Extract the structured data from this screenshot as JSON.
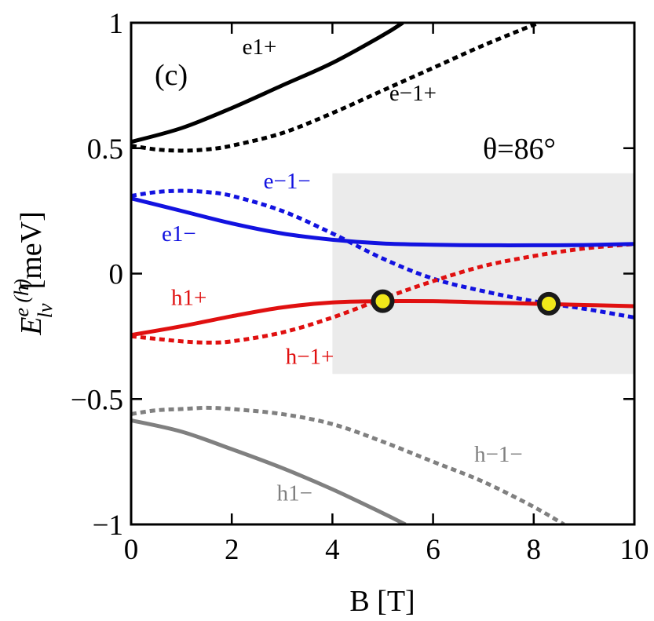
{
  "chart_data": {
    "type": "line",
    "panel_label": "(c)",
    "annotation": "θ=86°",
    "xlabel": "B [T]",
    "ylabel": {
      "base": "E",
      "sup": "e (h)",
      "sub": "lν",
      "unit": "[meV]"
    },
    "xlim": [
      0,
      10
    ],
    "ylim": [
      -1,
      1
    ],
    "x_ticks": [
      {
        "value": 0,
        "label": "0"
      },
      {
        "value": 2,
        "label": "2"
      },
      {
        "value": 4,
        "label": "4"
      },
      {
        "value": 6,
        "label": "6"
      },
      {
        "value": 8,
        "label": "8"
      },
      {
        "value": 10,
        "label": "10"
      }
    ],
    "y_ticks": [
      {
        "value": 1,
        "label": "1"
      },
      {
        "value": 0.5,
        "label": "0.5"
      },
      {
        "value": 0,
        "label": "0"
      },
      {
        "value": -0.5,
        "label": "−0.5"
      },
      {
        "value": -1,
        "label": "−1"
      }
    ],
    "shaded_region": {
      "x": [
        4,
        10
      ],
      "y": [
        -0.4,
        0.4
      ],
      "color": "#ebebeb"
    },
    "markers": [
      {
        "x": 5.0,
        "y": -0.11,
        "fill": "#f0e81a",
        "edge": "#1a1a1a"
      },
      {
        "x": 8.3,
        "y": -0.12,
        "fill": "#f0e81a",
        "edge": "#1a1a1a"
      }
    ],
    "series": [
      {
        "name": "e1+",
        "color": "#000000",
        "dashed": false,
        "x": [
          0,
          1,
          2,
          3,
          4,
          5,
          5.4
        ],
        "y": [
          0.525,
          0.58,
          0.66,
          0.75,
          0.84,
          0.95,
          1.0
        ],
        "label": {
          "text": "e1+",
          "x": 2.55,
          "y": 0.875
        }
      },
      {
        "name": "e−1+",
        "color": "#000000",
        "dashed": true,
        "x": [
          0,
          0.5,
          1,
          1.5,
          2,
          3,
          4,
          5,
          6,
          7,
          8.1
        ],
        "y": [
          0.51,
          0.495,
          0.49,
          0.495,
          0.51,
          0.56,
          0.64,
          0.73,
          0.82,
          0.91,
          1.0
        ],
        "label": {
          "text": "e−1+",
          "x": 5.6,
          "y": 0.69
        }
      },
      {
        "name": "e1−",
        "color": "#1212e0",
        "dashed": false,
        "x": [
          0,
          1,
          2,
          3,
          4,
          5,
          6,
          7,
          8,
          9,
          10
        ],
        "y": [
          0.3,
          0.25,
          0.2,
          0.16,
          0.135,
          0.12,
          0.115,
          0.113,
          0.113,
          0.114,
          0.118
        ],
        "label": {
          "text": "e1−",
          "x": 0.95,
          "y": 0.13
        }
      },
      {
        "name": "e−1−",
        "color": "#1212e0",
        "dashed": true,
        "x": [
          0,
          0.5,
          1,
          1.5,
          2,
          3,
          4,
          5,
          6,
          7,
          8,
          9,
          10
        ],
        "y": [
          0.31,
          0.325,
          0.33,
          0.325,
          0.31,
          0.25,
          0.16,
          0.06,
          -0.02,
          -0.07,
          -0.11,
          -0.14,
          -0.175
        ],
        "label": {
          "text": "e−1−",
          "x": 3.1,
          "y": 0.34
        }
      },
      {
        "name": "h1+",
        "color": "#e01010",
        "dashed": false,
        "x": [
          0,
          1,
          2,
          3,
          4,
          5,
          6,
          7,
          8,
          9,
          10
        ],
        "y": [
          -0.245,
          -0.21,
          -0.17,
          -0.135,
          -0.115,
          -0.11,
          -0.11,
          -0.115,
          -0.12,
          -0.125,
          -0.13
        ],
        "label": {
          "text": "h1+",
          "x": 1.15,
          "y": -0.125
        }
      },
      {
        "name": "h−1+",
        "color": "#e01010",
        "dashed": true,
        "x": [
          0,
          0.5,
          1,
          1.5,
          2,
          3,
          4,
          5,
          6,
          7,
          8,
          9,
          10
        ],
        "y": [
          -0.25,
          -0.26,
          -0.27,
          -0.275,
          -0.27,
          -0.235,
          -0.175,
          -0.1,
          -0.03,
          0.03,
          0.07,
          0.1,
          0.118
        ],
        "label": {
          "text": "h−1+",
          "x": 3.55,
          "y": -0.36
        }
      },
      {
        "name": "h1−",
        "color": "#808080",
        "dashed": false,
        "x": [
          0,
          1,
          2,
          3,
          4,
          5,
          5.45
        ],
        "y": [
          -0.585,
          -0.63,
          -0.7,
          -0.775,
          -0.86,
          -0.955,
          -1.0
        ],
        "label": {
          "text": "h1−",
          "x": 3.25,
          "y": -0.905
        }
      },
      {
        "name": "h−1−",
        "color": "#808080",
        "dashed": true,
        "x": [
          0,
          0.5,
          1,
          1.5,
          2,
          3,
          4,
          5,
          6,
          7,
          8,
          8.6
        ],
        "y": [
          -0.56,
          -0.545,
          -0.54,
          -0.535,
          -0.54,
          -0.56,
          -0.6,
          -0.67,
          -0.75,
          -0.83,
          -0.93,
          -1.0
        ],
        "label": {
          "text": "h−1−",
          "x": 7.3,
          "y": -0.75
        }
      }
    ]
  }
}
